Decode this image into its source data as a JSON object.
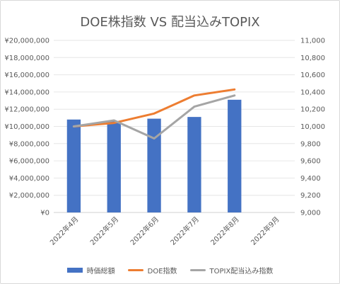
{
  "chart_data": {
    "type": "bar+line",
    "title": "DOE株指数 VS 配当込みTOPIX",
    "categories": [
      "2022年4月",
      "2022年5月",
      "2022年6月",
      "2022年7月",
      "2022年8月",
      "2022年9月"
    ],
    "left_axis": {
      "ticks": [
        "¥0",
        "¥2,000,000",
        "¥4,000,000",
        "¥6,000,000",
        "¥8,000,000",
        "¥10,000,000",
        "¥12,000,000",
        "¥14,000,000",
        "¥16,000,000",
        "¥18,000,000",
        "¥20,000,000"
      ],
      "ylim": [
        0,
        20000000
      ]
    },
    "right_axis": {
      "ticks": [
        "9,000",
        "9,200",
        "9,400",
        "9,600",
        "9,800",
        "10,000",
        "10,200",
        "10,400",
        "10,600",
        "10,800",
        "11,000"
      ],
      "ylim": [
        9000,
        11000
      ]
    },
    "series": [
      {
        "name": "時価総額",
        "type": "bar",
        "axis": "left",
        "color": "#4472c4",
        "values": [
          10800000,
          10600000,
          10900000,
          11100000,
          13100000,
          null
        ]
      },
      {
        "name": "DOE指数",
        "type": "line",
        "axis": "right",
        "color": "#ed7d31",
        "values": [
          10000,
          10040,
          10150,
          10360,
          10430,
          null
        ]
      },
      {
        "name": "TOPIX配当込み指数",
        "type": "line",
        "axis": "right",
        "color": "#a5a5a5",
        "values": [
          10000,
          10070,
          9860,
          10230,
          10360,
          null
        ]
      }
    ],
    "grid": true,
    "legend": "bottom"
  }
}
